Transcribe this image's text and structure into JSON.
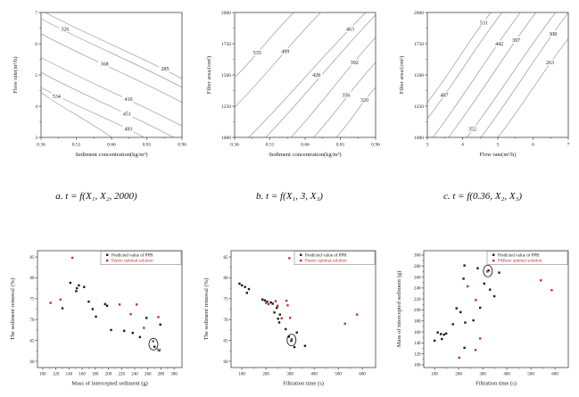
{
  "chart_data": [
    {
      "type": "contour",
      "panel": "a",
      "caption": "a. t = f(X₁, X₂, 2000)",
      "xlabel": "Sediment concentration(kg/m³)",
      "ylabel": "Flow rate(m³/h)",
      "xticks": [
        "0.36",
        "0.51",
        "0.66",
        "0.81",
        "0.96"
      ],
      "yticks": [
        "3",
        "4",
        "5",
        "6",
        "7"
      ],
      "line_color": "#9a9a9a",
      "contours": [
        {
          "level": "285",
          "from": [
            3,
            0
          ],
          "to": [
            100,
            53
          ],
          "label_at": [
            88,
            45
          ]
        },
        {
          "level": "326",
          "from": [
            0,
            5
          ],
          "to": [
            100,
            60
          ],
          "label_at": [
            17,
            13
          ]
        },
        {
          "level": "368",
          "from": [
            0,
            17
          ],
          "to": [
            100,
            72
          ],
          "label_at": [
            45,
            41
          ]
        },
        {
          "level": "410",
          "from": [
            0,
            36
          ],
          "to": [
            100,
            91
          ],
          "label_at": [
            62,
            69
          ]
        },
        {
          "level": "451",
          "from": [
            0,
            48
          ],
          "to": [
            94,
            100
          ],
          "label_at": [
            61,
            81
          ]
        },
        {
          "level": "493",
          "from": [
            0,
            60
          ],
          "to": [
            73,
            100
          ],
          "label_at": [
            62,
            93
          ]
        },
        {
          "level": "534",
          "from": [
            0,
            64
          ],
          "to": [
            50,
            100
          ],
          "label_at": [
            11,
            67
          ]
        }
      ]
    },
    {
      "type": "contour",
      "panel": "b",
      "caption": "b. t = f(X₁, 3, X₃)",
      "xlabel": "Sediment concentration(kg/m³)",
      "ylabel": "Filter area/(cm²)",
      "xticks": [
        "0.36",
        "0.51",
        "0.66",
        "0.81",
        "0.96"
      ],
      "yticks": [
        "1000",
        "1250",
        "1500",
        "1750",
        "2000"
      ],
      "line_color": "#9a9a9a",
      "contours": [
        {
          "level": "535",
          "from": [
            0,
            52
          ],
          "to": [
            42,
            0
          ],
          "label_at": [
            16,
            32
          ]
        },
        {
          "level": "499",
          "from": [
            0,
            76
          ],
          "to": [
            61,
            0
          ],
          "label_at": [
            36,
            31
          ]
        },
        {
          "level": "463",
          "from": [
            10,
            100
          ],
          "to": [
            93,
            0
          ],
          "label_at": [
            82,
            13
          ]
        },
        {
          "level": "428",
          "from": [
            22,
            100
          ],
          "to": [
            100,
            2
          ],
          "label_at": [
            58,
            50
          ]
        },
        {
          "level": "392",
          "from": [
            40,
            100
          ],
          "to": [
            100,
            20
          ],
          "label_at": [
            85,
            40
          ]
        },
        {
          "level": "356",
          "from": [
            56,
            100
          ],
          "to": [
            100,
            40
          ],
          "label_at": [
            79,
            66
          ]
        },
        {
          "level": "320",
          "from": [
            72,
            100
          ],
          "to": [
            100,
            60
          ],
          "label_at": [
            92,
            70
          ]
        }
      ]
    },
    {
      "type": "contour",
      "panel": "c",
      "caption": "c. t = f(0.36, X₂, X₃)",
      "xlabel": "Flow rate(m³/h)",
      "ylabel": "Filter area/(cm²)",
      "xticks": [
        "3",
        "4",
        "5",
        "6",
        "7"
      ],
      "yticks": [
        "1000",
        "1250",
        "1500",
        "1750",
        "2000"
      ],
      "line_color": "#9a9a9a",
      "contours": [
        {
          "level": "531",
          "from": [
            0,
            72
          ],
          "to": [
            45,
            0
          ],
          "label_at": [
            40,
            8
          ]
        },
        {
          "level": "487",
          "from": [
            0,
            85
          ],
          "to": [
            53,
            0
          ],
          "label_at": [
            12,
            66
          ]
        },
        {
          "level": "442",
          "from": [
            4,
            100
          ],
          "to": [
            66,
            0
          ],
          "label_at": [
            51,
            25
          ]
        },
        {
          "level": "397",
          "from": [
            15,
            100
          ],
          "to": [
            77,
            0
          ],
          "label_at": [
            63,
            22
          ]
        },
        {
          "level": "352",
          "from": [
            28,
            100
          ],
          "to": [
            91,
            0
          ],
          "label_at": [
            32,
            93
          ]
        },
        {
          "level": "308",
          "from": [
            38,
            100
          ],
          "to": [
            100,
            0
          ],
          "label_at": [
            89,
            17
          ]
        },
        {
          "level": "263",
          "from": [
            50,
            100
          ],
          "to": [
            100,
            21
          ],
          "label_at": [
            87,
            40
          ]
        }
      ]
    },
    {
      "type": "scatter",
      "panel": "d",
      "xlabel": "Mass of intercepted sediment (g)",
      "ylabel": "The sediment removal (%)",
      "xlim": [
        92,
        312
      ],
      "ylim": [
        58.5,
        86.5
      ],
      "xticks": [
        100,
        120,
        140,
        160,
        180,
        200,
        220,
        240,
        260,
        280,
        300
      ],
      "yticks": [
        60,
        65,
        70,
        75,
        80,
        85
      ],
      "series": [
        {
          "name": "Predicted value of PPR",
          "color": "#1c1c1c",
          "points": [
            [
              142,
              78.8
            ],
            [
              152,
              77.5
            ],
            [
              155,
              78.2
            ],
            [
              151,
              76.8
            ],
            [
              163,
              77.8
            ],
            [
              130,
              72.7
            ],
            [
              170,
              74.3
            ],
            [
              176,
              72.5
            ],
            [
              181,
              70.7
            ],
            [
              195,
              73.7
            ],
            [
              198,
              73.3
            ],
            [
              204,
              67.5
            ],
            [
              224,
              67.3
            ],
            [
              237,
              66.8
            ],
            [
              248,
              65.8
            ],
            [
              258,
              70.4
            ],
            [
              270,
              63.5
            ],
            [
              279,
              68.8
            ]
          ]
        },
        {
          "name": "Pareto optimal solution",
          "color": "#bf3333",
          "points": [
            [
              112,
              74.0
            ],
            [
              127,
              74.8
            ],
            [
              145,
              84.8
            ],
            [
              217,
              73.6
            ],
            [
              243,
              73.6
            ],
            [
              234,
              71.3
            ],
            [
              254,
              68.0
            ],
            [
              268,
              64.8
            ],
            [
              276,
              70.6
            ]
          ]
        }
      ],
      "annotation_circle": [
        268.5,
        64.1
      ],
      "annotation_arrow": true
    },
    {
      "type": "scatter",
      "panel": "e",
      "xlabel": "Filtration time (s)",
      "ylabel": "The sediment removal (%)",
      "xlim": [
        55,
        655
      ],
      "ylim": [
        58.5,
        86.5
      ],
      "xticks": [
        100,
        200,
        300,
        400,
        500,
        600
      ],
      "yticks": [
        60,
        65,
        70,
        75,
        80,
        85
      ],
      "series": [
        {
          "name": "Predicted value of PPR",
          "color": "#1c1c1c",
          "points": [
            [
              90,
              78.6
            ],
            [
              100,
              78.2
            ],
            [
              113,
              77.8
            ],
            [
              129,
              77.3
            ],
            [
              121,
              76.4
            ],
            [
              185,
              74.8
            ],
            [
              195,
              74.6
            ],
            [
              205,
              74.3
            ],
            [
              220,
              74.1
            ],
            [
              228,
              73.8
            ],
            [
              245,
              72.8
            ],
            [
              235,
              71.7
            ],
            [
              258,
              71.2
            ],
            [
              250,
              70.2
            ],
            [
              255,
              69.3
            ],
            [
              282,
              67.7
            ],
            [
              328,
              66.9
            ],
            [
              295,
              65.9
            ],
            [
              305,
              64.9
            ],
            [
              318,
              63.4
            ],
            [
              362,
              63.7
            ]
          ]
        },
        {
          "name": "Pareto optimal solution",
          "color": "#bf3333",
          "points": [
            [
              297,
              84.7
            ],
            [
              200,
              74.0
            ],
            [
              210,
              73.7
            ],
            [
              240,
              74.4
            ],
            [
              248,
              73.3
            ],
            [
              285,
              74.5
            ],
            [
              290,
              73.4
            ],
            [
              265,
              70.3
            ],
            [
              300,
              70.4
            ],
            [
              307,
              65.3
            ],
            [
              528,
              69.0
            ],
            [
              578,
              71.2
            ]
          ]
        }
      ],
      "annotation_circle": [
        306,
        65.1
      ],
      "annotation_arrow": false
    },
    {
      "type": "scatter",
      "panel": "f",
      "xlabel": "Filtration time (s)",
      "ylabel": "Mass of intercepted sediment (g)",
      "xlim": [
        55,
        655
      ],
      "ylim": [
        95,
        308
      ],
      "xticks": [
        100,
        200,
        300,
        400,
        500,
        600
      ],
      "yticks": [
        100,
        120,
        140,
        160,
        180,
        200,
        220,
        240,
        260,
        280,
        300
      ],
      "series": [
        {
          "name": "Predicted value of PPR",
          "color": "#1c1c1c",
          "points": [
            [
              224,
              281
            ],
            [
              220,
              257
            ],
            [
              279,
              276
            ],
            [
              324,
              272
            ],
            [
              306,
              248
            ],
            [
              330,
              237
            ],
            [
              368,
              268
            ],
            [
              348,
              225
            ],
            [
              191,
              203
            ],
            [
              208,
              196
            ],
            [
              289,
              204
            ],
            [
              176,
              174
            ],
            [
              227,
              177
            ],
            [
              261,
              181
            ],
            [
              113,
              159
            ],
            [
              126,
              156
            ],
            [
              139,
              155
            ],
            [
              148,
              157
            ],
            [
              100,
              144
            ],
            [
              130,
              147
            ],
            [
              224,
              131
            ]
          ]
        },
        {
          "name": "PAReto optimal solution",
          "color": "#bf3333",
          "points": [
            [
              319,
              270
            ],
            [
              541,
              254
            ],
            [
              586,
              236
            ],
            [
              237,
              243
            ],
            [
              271,
              218
            ],
            [
              289,
              148
            ],
            [
              270,
              127
            ],
            [
              202,
              113
            ]
          ]
        }
      ],
      "annotation_circle": [
        321,
        271
      ],
      "annotation_arrow": false
    }
  ]
}
